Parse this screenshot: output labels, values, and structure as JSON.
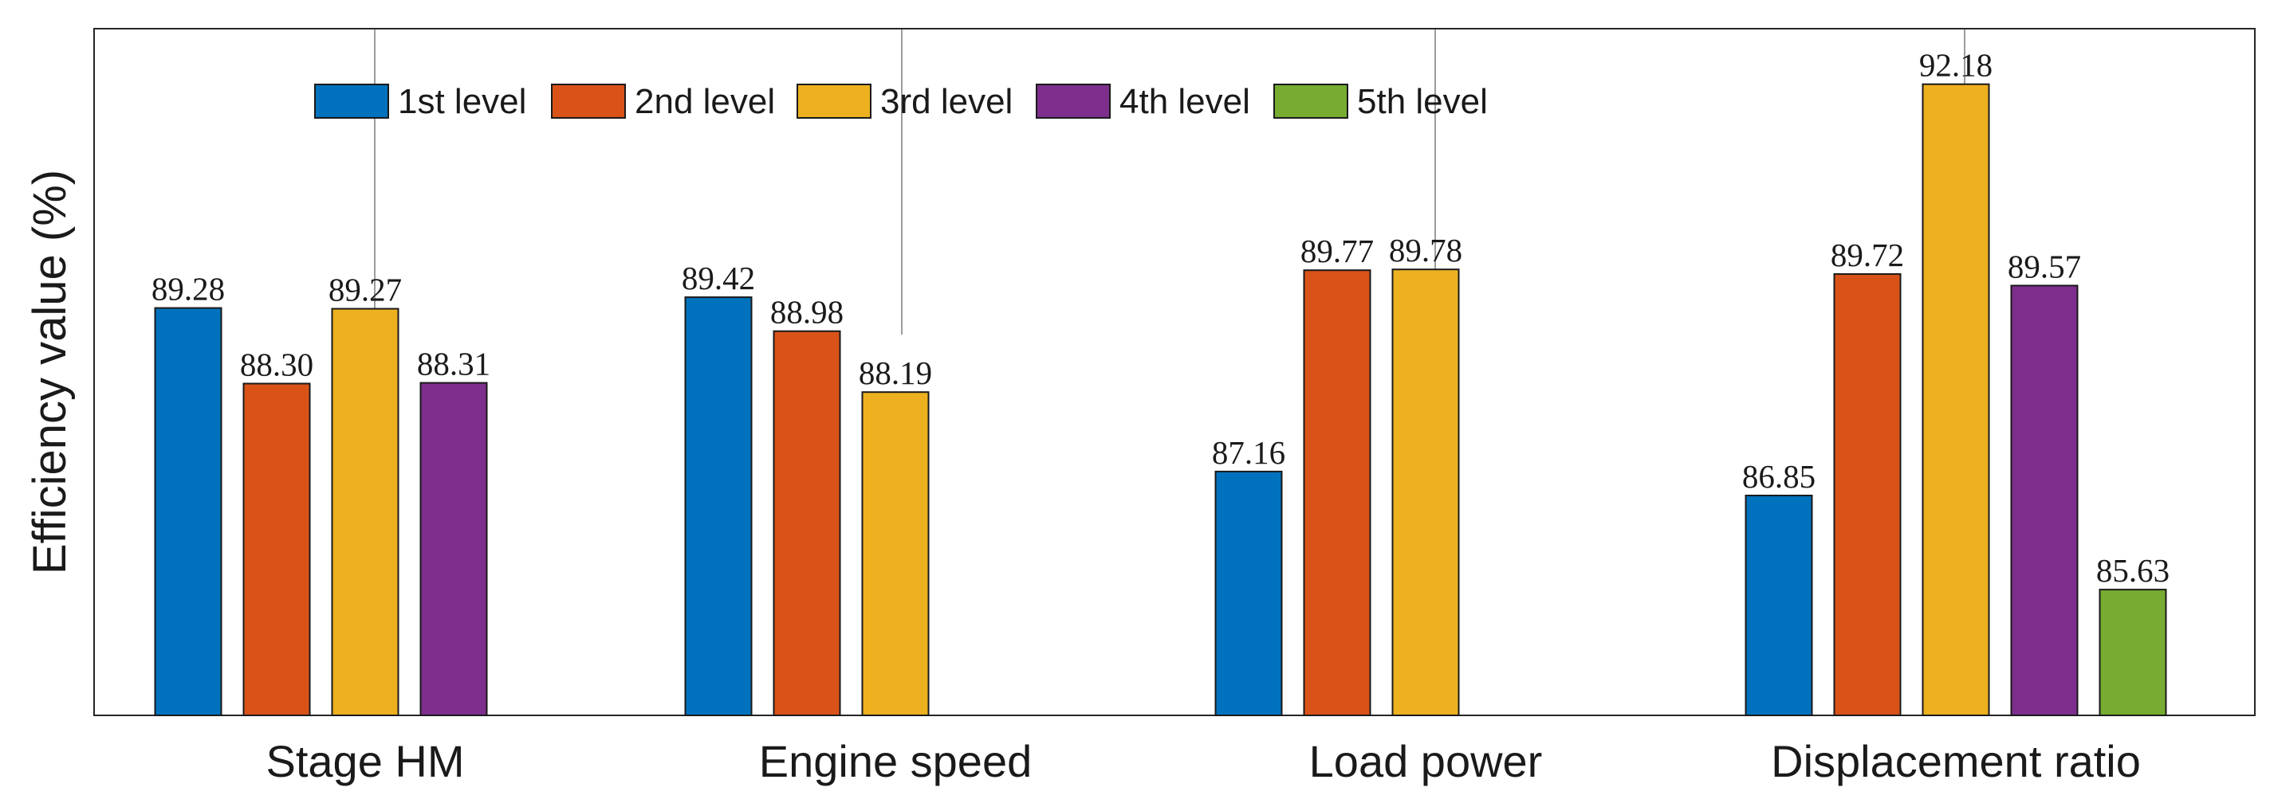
{
  "chart_data": {
    "type": "bar",
    "title": "",
    "xlabel": "",
    "ylabel": "Efficiency value (%)",
    "ylim": [
      84,
      92.9
    ],
    "grid": false,
    "legend_position": "top-left",
    "categories": [
      "Stage HM",
      "Engine speed",
      "Load power",
      "Displacement ratio"
    ],
    "series": [
      {
        "name": "1st level",
        "color": "#0072BD",
        "values": [
          89.28,
          89.42,
          87.16,
          86.85
        ]
      },
      {
        "name": "2nd level",
        "color": "#D95319",
        "values": [
          88.3,
          88.98,
          89.77,
          89.72
        ]
      },
      {
        "name": "3rd level",
        "color": "#EDB120",
        "values": [
          89.27,
          88.19,
          89.78,
          92.18
        ]
      },
      {
        "name": "4th level",
        "color": "#7E2F8E",
        "values": [
          88.31,
          null,
          null,
          89.57
        ]
      },
      {
        "name": "5th level",
        "color": "#77AC30",
        "values": [
          null,
          null,
          null,
          85.63
        ]
      }
    ],
    "data_labels": [
      [
        "89.28",
        "88.30",
        "89.27",
        "88.31",
        null
      ],
      [
        "89.42",
        "88.98",
        "88.19",
        null,
        null
      ],
      [
        "87.16",
        "89.77",
        "89.78",
        null,
        null
      ],
      [
        "86.85",
        "89.72",
        "92.18",
        "89.57",
        "85.63"
      ]
    ]
  }
}
